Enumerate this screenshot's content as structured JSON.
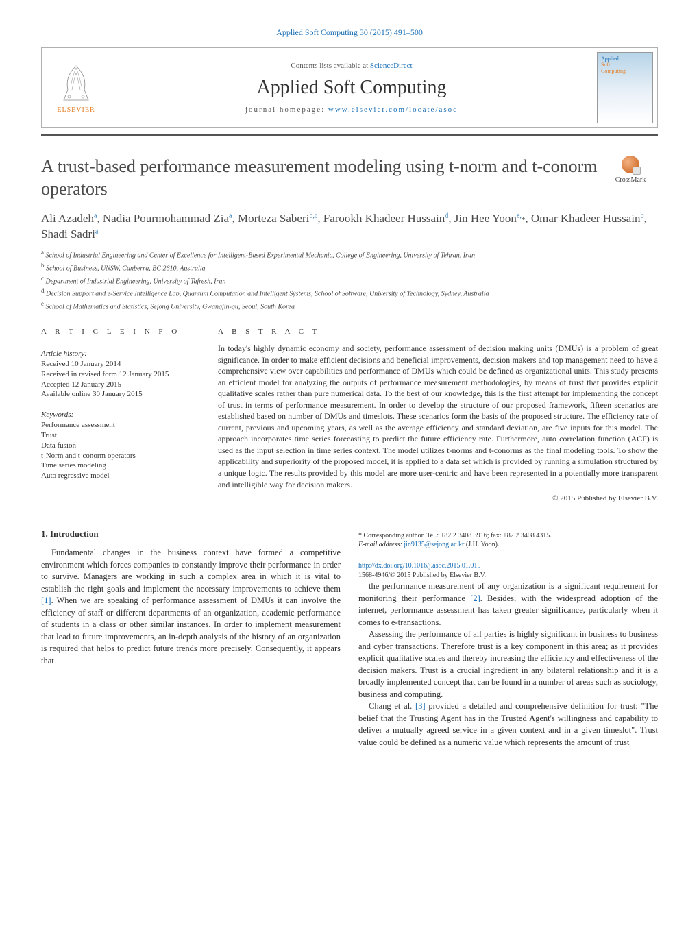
{
  "header": {
    "citation": "Applied Soft Computing 30 (2015) 491–500",
    "contents_prefix": "Contents lists available at ",
    "contents_link": "ScienceDirect",
    "journal_name": "Applied Soft Computing",
    "homepage_prefix": "journal homepage: ",
    "homepage_url": "www.elsevier.com/locate/asoc",
    "elsevier_label": "ELSEVIER",
    "cover_line1": "Applied",
    "cover_line2": "Soft",
    "cover_line3": "Computing",
    "crossmark": "CrossMark"
  },
  "article": {
    "title": "A trust-based performance measurement modeling using t-norm and t-conorm operators",
    "authors_html": "Ali Azadeh<sup>a</sup>, Nadia Pourmohammad Zia<sup>a</sup>, Morteza Saberi<sup>b,c</sup>, Farookh Khadeer Hussain<sup>d</sup>, Jin Hee Yoon<sup>e,</sup><span class='ast'>*</span>, Omar Khadeer Hussain<sup>b</sup>, Shadi Sadri<sup>a</sup>",
    "affiliations": [
      "<sup>a</sup> School of Industrial Engineering and Center of Excellence for Intelligent-Based Experimental Mechanic, College of Engineering, University of Tehran, Iran",
      "<sup>b</sup> School of Business, UNSW, Canberra, BC 2610, Australia",
      "<sup>c</sup> Department of Industrial Engineering, University of Tafresh, Iran",
      "<sup>d</sup> Decision Support and e-Service Intelligence Lab, Quantum Computation and Intelligent Systems, School of Software, University of Technology, Sydney, Australia",
      "<sup>e</sup> School of Mathematics and Statistics, Sejong University, Gwangjin-gu, Seoul, South Korea"
    ]
  },
  "info": {
    "heading": "A R T I C L E   I N F O",
    "history_label": "Article history:",
    "history": [
      "Received 10 January 2014",
      "Received in revised form 12 January 2015",
      "Accepted 12 January 2015",
      "Available online 30 January 2015"
    ],
    "keywords_label": "Keywords:",
    "keywords": [
      "Performance assessment",
      "Trust",
      "Data fusion",
      "t-Norm and t-conorm operators",
      "Time series modeling",
      "Auto regressive model"
    ]
  },
  "abstract": {
    "heading": "A B S T R A C T",
    "text": "In today's highly dynamic economy and society, performance assessment of decision making units (DMUs) is a problem of great significance. In order to make efficient decisions and beneficial improvements, decision makers and top management need to have a comprehensive view over capabilities and performance of DMUs which could be defined as organizational units. This study presents an efficient model for analyzing the outputs of performance measurement methodologies, by means of trust that provides explicit qualitative scales rather than pure numerical data. To the best of our knowledge, this is the first attempt for implementing the concept of trust in terms of performance measurement. In order to develop the structure of our proposed framework, fifteen scenarios are established based on number of DMUs and timeslots. These scenarios form the basis of the proposed structure. The efficiency rate of current, previous and upcoming years, as well as the average efficiency and standard deviation, are five inputs for this model. The approach incorporates time series forecasting to predict the future efficiency rate. Furthermore, auto correlation function (ACF) is used as the input selection in time series context. The model utilizes t-norms and t-conorms as the final modeling tools. To show the applicability and superiority of the proposed model, it is applied to a data set which is provided by running a simulation structured by a unique logic. The results provided by this model are more user-centric and have been represented in a potentially more transparent and intelligible way for decision makers.",
    "copyright": "© 2015 Published by Elsevier B.V."
  },
  "body": {
    "section_number": "1.",
    "section_title": "Introduction",
    "col1_p1": "Fundamental changes in the business context have formed a competitive environment which forces companies to constantly improve their performance in order to survive. Managers are working in such a complex area in which it is vital to establish the right goals and implement the necessary improvements to achieve them [1]. When we are speaking of performance assessment of DMUs it can involve the efficiency of staff or different departments of an organization, academic performance of students in a class or other similar instances. In order to implement measurement that lead to future improvements, an in-depth analysis of the history of an organization is required that helps to predict future trends more precisely. Consequently, it appears that",
    "col2_p1": "the performance measurement of any organization is a significant requirement for monitoring their performance [2]. Besides, with the widespread adoption of the internet, performance assessment has taken greater significance, particularly when it comes to e-transactions.",
    "col2_p2": "Assessing the performance of all parties is highly significant in business to business and cyber transactions. Therefore trust is a key component in this area; as it provides explicit qualitative scales and thereby increasing the efficiency and effectiveness of the decision makers. Trust is a crucial ingredient in any bilateral relationship and it is a broadly implemented concept that can be found in a number of areas such as sociology, business and computing.",
    "col2_p3": "Chang et al. [3] provided a detailed and comprehensive definition for trust: \"The belief that the Trusting Agent has in the Trusted Agent's willingness and capability to deliver a mutually agreed service in a given context and in a given timeslot\". Trust value could be defined as a numeric value which represents the amount of trust"
  },
  "footer": {
    "corr_label": "* Corresponding author. Tel.: +82 2 3408 3916; fax: +82 2 3408 4315.",
    "email_label": "E-mail address:",
    "email": "jin9135@sejong.ac.kr",
    "email_name": "(J.H. Yoon).",
    "doi": "http://dx.doi.org/10.1016/j.asoc.2015.01.015",
    "issn_line": "1568-4946/© 2015 Published by Elsevier B.V."
  },
  "colors": {
    "link": "#1a6fb5",
    "orange": "#e57e25",
    "text": "#333333",
    "rule": "#333333",
    "box_border": "#b0b0b0"
  },
  "fonts": {
    "body_family": "Times New Roman",
    "title_size_pt": 20,
    "author_size_pt": 13,
    "abstract_size_pt": 9,
    "body_size_pt": 9.5
  }
}
